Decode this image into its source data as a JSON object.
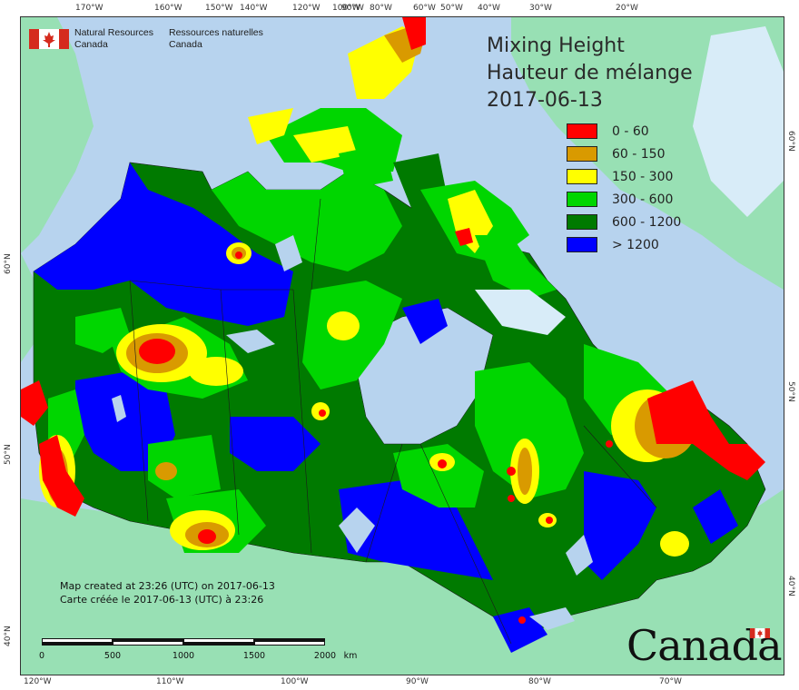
{
  "title": {
    "line1": "Mixing Height",
    "line2": "Hauteur de mélange",
    "date": "2017-06-13"
  },
  "agency": {
    "name_en_1": "Natural Resources",
    "name_en_2": "Canada",
    "name_fr_1": "Ressources naturelles",
    "name_fr_2": "Canada"
  },
  "legend": [
    {
      "label": "0 - 60",
      "color": "#ff0000"
    },
    {
      "label": "60 - 150",
      "color": "#d99a00"
    },
    {
      "label": "150 - 300",
      "color": "#ffff00"
    },
    {
      "label": "300 - 600",
      "color": "#00d600"
    },
    {
      "label": "600 - 1200",
      "color": "#007a00"
    },
    {
      "label": "> 1200",
      "color": "#0000ff"
    }
  ],
  "credits": {
    "en": "Map created at 23:26 (UTC) on 2017-06-13",
    "fr": "Carte créée le 2017-06-13 (UTC) à 23:26"
  },
  "scale": {
    "ticks": [
      "0",
      "500",
      "1000",
      "1500",
      "2000"
    ],
    "unit": "km"
  },
  "graticule": {
    "top": [
      "170°W",
      "160°W",
      "150°W",
      "140°W",
      "120°W",
      "100°W",
      "90°W",
      "80°W",
      "60°W",
      "50°W",
      "40°W",
      "30°W",
      "20°W"
    ],
    "bottom": [
      "120°W",
      "110°W",
      "100°W",
      "90°W",
      "80°W",
      "70°W"
    ],
    "left": [
      "60°N",
      "50°N",
      "40°N"
    ],
    "right": [
      "60°N",
      "50°N",
      "40°N"
    ]
  },
  "wordmark": "Canada",
  "colors": {
    "water": "#b7d3ee",
    "land_other": "#98e0b4",
    "ice": "#d8ecf8"
  }
}
